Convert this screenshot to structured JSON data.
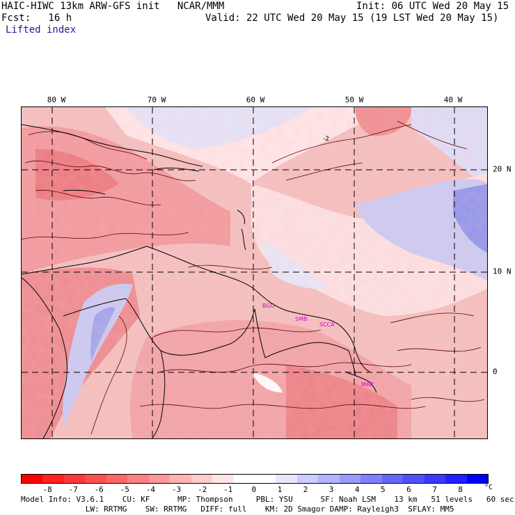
{
  "header": {
    "line1_left": "HAIC-HIWC 13km ARW-GFS init   NCAR/MMM",
    "line1_right": "Init: 06 UTC Wed 20 May 15",
    "line2_left": "Fcst:   16 h",
    "line2_right": "Valid: 22 UTC Wed 20 May 15 (19 LST Wed 20 May 15)",
    "field": "Lifted index"
  },
  "map": {
    "lon_labels": [
      "80 W",
      "70 W",
      "60 W",
      "50 W",
      "40 W"
    ],
    "lat_labels": [
      "20 N",
      "10 N",
      "0"
    ],
    "stations": [
      "BGU",
      "SMB",
      "SCCA",
      "MAP"
    ],
    "contour_label": "-2"
  },
  "colorbar": {
    "ticks": [
      "-8",
      "-7",
      "-6",
      "-5",
      "-4",
      "-3",
      "-2",
      "-1",
      "0",
      "1",
      "2",
      "3",
      "4",
      "5",
      "6",
      "7",
      "8"
    ],
    "unit": "°C",
    "colors": [
      "#ff0000",
      "#ff2020",
      "#ff3a3a",
      "#ff5050",
      "#ff6666",
      "#ff8080",
      "#ff9999",
      "#ffb3b3",
      "#ffcccc",
      "#ffe6e6",
      "#ffffff",
      "#ffffff",
      "#e6e6ff",
      "#ccccff",
      "#b3b3ff",
      "#9999ff",
      "#8080ff",
      "#6666ff",
      "#5050ff",
      "#3a3aff",
      "#2020ff",
      "#0000ff"
    ]
  },
  "footer": {
    "line1": "Model Info: V3.6.1    CU: KF      MP: Thompson     PBL: YSU      SF: Noah LSM    13 km   51 levels   60 sec",
    "line2": "              LW: RRTMG    SW: RRTMG   DIFF: full    KM: 2D Smagor DAMP: Rayleigh3  SFLAY: MM5"
  }
}
